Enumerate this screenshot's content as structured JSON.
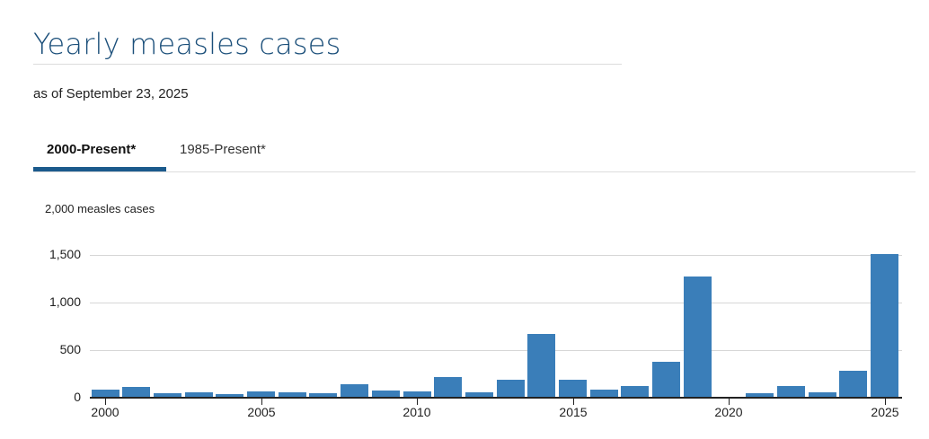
{
  "header": {
    "title": "Yearly measles cases",
    "subtitle": "as of September 23, 2025"
  },
  "tabs": [
    {
      "label": "2000-Present*",
      "active": true
    },
    {
      "label": "1985-Present*",
      "active": false
    }
  ],
  "colors": {
    "bar": "#3a7eb9",
    "title": "#1b4f7a",
    "tab_active_underline": "#1b5a8c"
  },
  "chart_data": {
    "type": "bar",
    "title": "Yearly measles cases",
    "subtitle": "as of September 23, 2025",
    "xlabel": "",
    "ylabel": "2,000 measles cases",
    "ylim": [
      0,
      2000
    ],
    "yticks": [
      "0",
      "500",
      "1,000",
      "1,500"
    ],
    "xticks": [
      "2000",
      "2005",
      "2010",
      "2015",
      "2020",
      "2025"
    ],
    "grid": true,
    "legend": null,
    "categories": [
      "2000",
      "2001",
      "2002",
      "2003",
      "2004",
      "2005",
      "2006",
      "2007",
      "2008",
      "2009",
      "2010",
      "2011",
      "2012",
      "2013",
      "2014",
      "2015",
      "2016",
      "2017",
      "2018",
      "2019",
      "2020",
      "2021",
      "2022",
      "2023",
      "2024",
      "2025"
    ],
    "values": [
      86,
      116,
      44,
      56,
      37,
      66,
      55,
      43,
      140,
      71,
      63,
      220,
      55,
      187,
      667,
      188,
      86,
      120,
      381,
      1274,
      13,
      49,
      121,
      59,
      285,
      1514
    ]
  }
}
